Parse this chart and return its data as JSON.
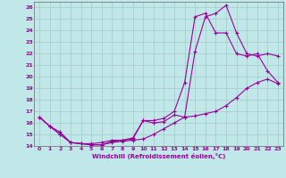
{
  "xlabel": "Windchill (Refroidissement éolien,°C)",
  "background_color": "#c0e8e8",
  "grid_color": "#aacccc",
  "line_color": "#990099",
  "xlim": [
    -0.5,
    23.5
  ],
  "ylim": [
    14,
    26.5
  ],
  "xticks": [
    0,
    1,
    2,
    3,
    4,
    5,
    6,
    7,
    8,
    9,
    10,
    11,
    12,
    13,
    14,
    15,
    16,
    17,
    18,
    19,
    20,
    21,
    22,
    23
  ],
  "yticks": [
    14,
    15,
    16,
    17,
    18,
    19,
    20,
    21,
    22,
    23,
    24,
    25,
    26
  ],
  "curve1_x": [
    0,
    1,
    2,
    3,
    4,
    5,
    6,
    7,
    8,
    9,
    10,
    11,
    12,
    13,
    14,
    15,
    16,
    17,
    18,
    19,
    20,
    21,
    22,
    23
  ],
  "curve1_y": [
    16.5,
    15.7,
    15.0,
    14.3,
    14.2,
    14.1,
    14.1,
    14.3,
    14.4,
    14.5,
    14.6,
    15.0,
    15.5,
    16.0,
    16.5,
    16.6,
    16.8,
    17.0,
    17.5,
    18.2,
    19.0,
    19.5,
    19.8,
    19.4
  ],
  "curve2_x": [
    0,
    1,
    2,
    3,
    4,
    5,
    6,
    7,
    8,
    9,
    10,
    11,
    12,
    13,
    14,
    15,
    16,
    17,
    18,
    19,
    20,
    21,
    22,
    23
  ],
  "curve2_y": [
    16.5,
    15.7,
    15.2,
    14.3,
    14.2,
    14.2,
    14.3,
    14.5,
    14.5,
    14.7,
    16.2,
    16.0,
    16.1,
    16.7,
    16.5,
    22.2,
    25.2,
    25.5,
    26.2,
    23.8,
    22.0,
    21.8,
    22.0,
    21.8
  ],
  "curve3_x": [
    0,
    1,
    2,
    3,
    4,
    5,
    6,
    7,
    8,
    9,
    10,
    11,
    12,
    13,
    14,
    15,
    16,
    17,
    18,
    19,
    20,
    21,
    22,
    23
  ],
  "curve3_y": [
    16.5,
    15.7,
    15.0,
    14.3,
    14.2,
    14.1,
    14.1,
    14.4,
    14.5,
    14.6,
    16.2,
    16.2,
    16.4,
    17.0,
    19.5,
    25.2,
    25.5,
    23.8,
    23.8,
    22.0,
    21.8,
    22.0,
    20.5,
    19.5
  ]
}
